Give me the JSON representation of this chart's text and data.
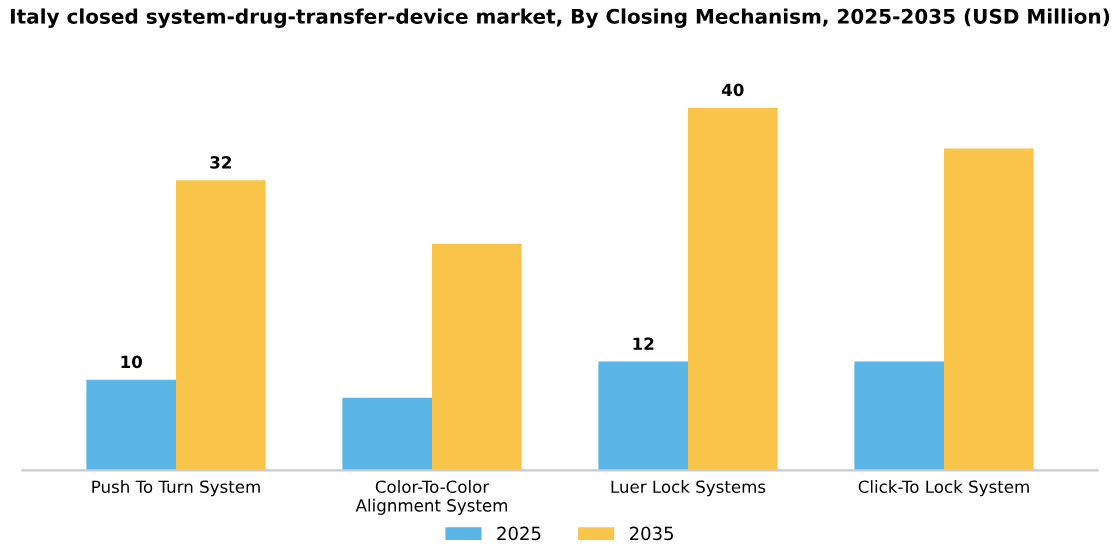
{
  "chart_data": {
    "type": "bar",
    "title": "Italy closed system-drug-transfer-device market, By Closing Mechanism, 2025-2035 (USD Million)",
    "categories": [
      "Push To Turn System",
      "Color-To-Color\nAlignment System",
      "Luer Lock Systems",
      "Click-To Lock System"
    ],
    "series": [
      {
        "name": "2025",
        "color": "#5ab4e5",
        "values": [
          10,
          8,
          12,
          12
        ],
        "value_labels": [
          "10",
          null,
          "12",
          null
        ]
      },
      {
        "name": "2035",
        "color": "#f9c44a",
        "values": [
          32,
          25,
          40,
          35.5
        ],
        "value_labels": [
          "32",
          null,
          "40",
          null
        ]
      }
    ],
    "legend": "bottom",
    "grid": false
  }
}
